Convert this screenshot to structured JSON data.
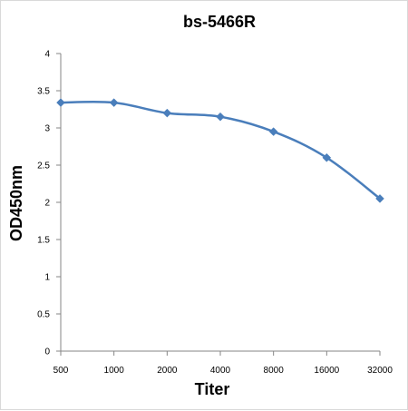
{
  "chart_data": {
    "type": "line",
    "title": "bs-5466R",
    "xlabel": "Titer",
    "ylabel": "OD450nm",
    "categories": [
      "500",
      "1000",
      "2000",
      "4000",
      "8000",
      "16000",
      "32000"
    ],
    "series": [
      {
        "values": [
          3.34,
          3.34,
          3.2,
          3.15,
          2.95,
          2.6,
          2.05
        ],
        "color": "#4a7ebb",
        "marker": "diamond"
      }
    ],
    "ylim": [
      0,
      4
    ],
    "yticks": [
      "0",
      "0.5",
      "1",
      "1.5",
      "2",
      "2.5",
      "3",
      "3.5",
      "4"
    ],
    "grid": false,
    "legend": "none"
  }
}
